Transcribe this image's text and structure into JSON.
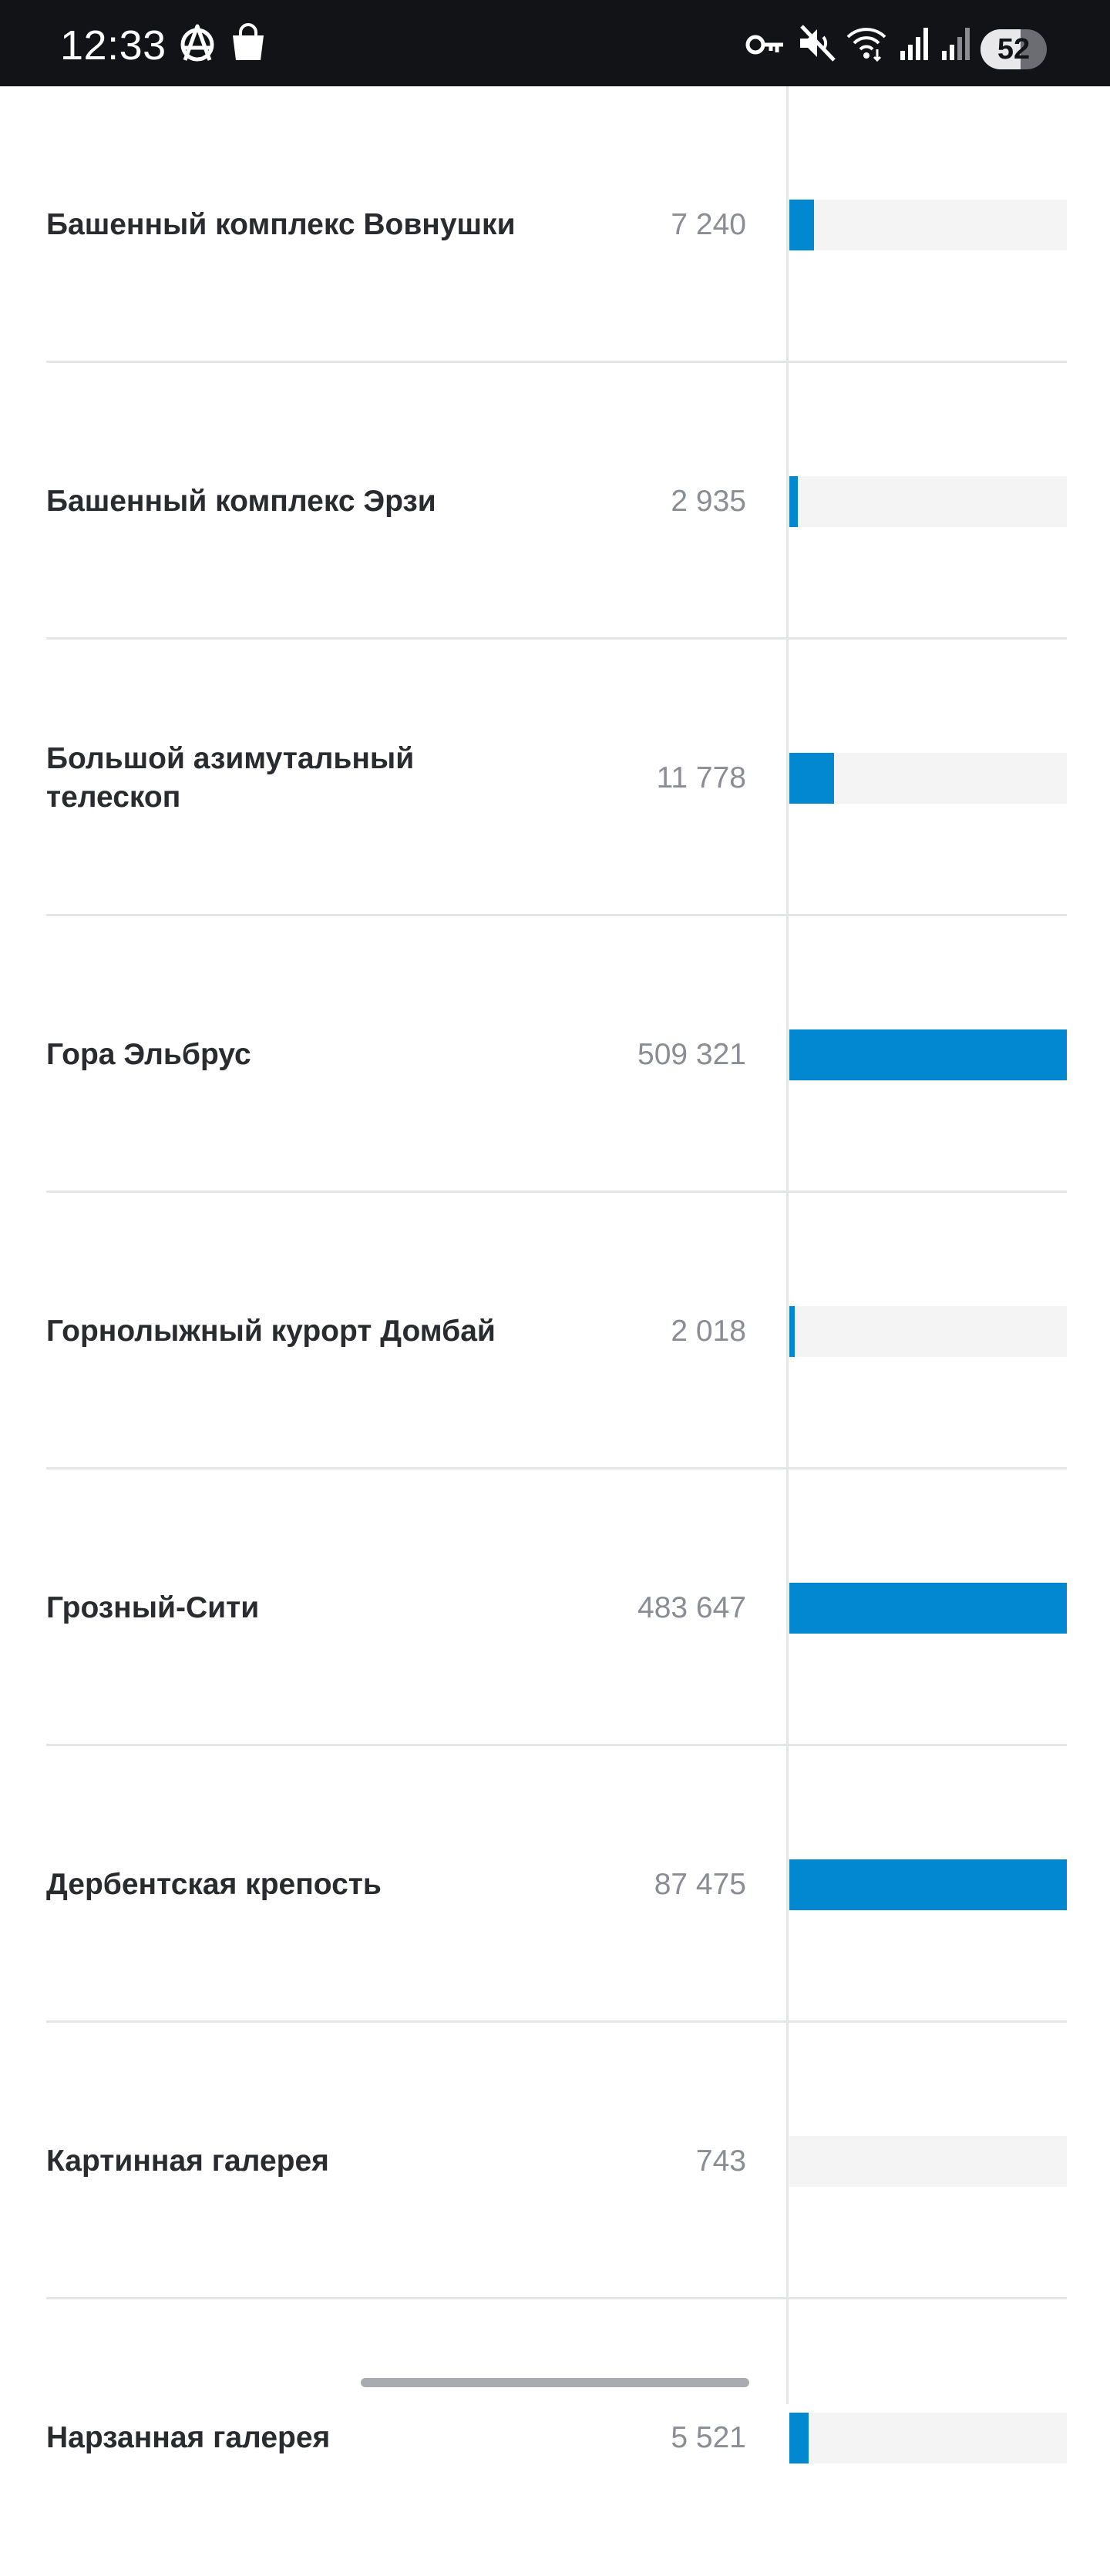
{
  "status_bar": {
    "time": "12:33",
    "battery": "52",
    "battery_level": 0.6,
    "icons": [
      "anarchy-icon",
      "shopping-bag-icon",
      "vpn-key-icon",
      "mute-icon",
      "wifi-icon",
      "signal-icon",
      "signal-icon-2",
      "battery-icon"
    ]
  },
  "colors": {
    "bar": "#0288d1",
    "track": "#f4f4f5",
    "name_text": "#2a2b2f",
    "value_text": "#8a8d93",
    "status_bar_bg": "#121317"
  },
  "list": {
    "max_value": 509321,
    "items": [
      {
        "name": "Башенный комплекс Вовнушки",
        "value": "7 240",
        "fill": 0.09
      },
      {
        "name": "Башенный комплекс Эрзи",
        "value": "2 935",
        "fill": 0.03
      },
      {
        "name": "Большой азимутальный телескоп",
        "value": "11 778",
        "fill": 0.16
      },
      {
        "name": "Гора Эльбрус",
        "value": "509 321",
        "fill": 1.0
      },
      {
        "name": "Горнолыжный курорт Домбай",
        "value": "2 018",
        "fill": 0.02
      },
      {
        "name": "Грозный-Сити",
        "value": "483 647",
        "fill": 1.0
      },
      {
        "name": "Дербентская крепость",
        "value": "87 475",
        "fill": 1.0
      },
      {
        "name": "Картинная галерея",
        "value": "743",
        "fill": 0.0
      },
      {
        "name": "Нарзанная галерея",
        "value": "5 521",
        "fill": 0.07
      }
    ]
  }
}
